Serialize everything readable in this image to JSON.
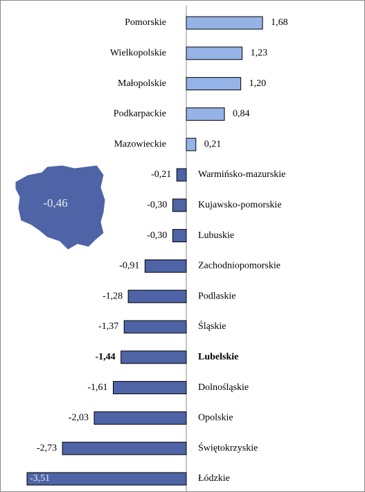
{
  "chart_data": {
    "type": "bar",
    "orientation": "horizontal",
    "categories": [
      "Pomorskie",
      "Wielkopolskie",
      "Małopolskie",
      "Podkarpackie",
      "Mazowieckie",
      "Warmińsko-mazurskie",
      "Kujawsko-pomorskie",
      "Lubuskie",
      "Zachodniopomorskie",
      "Podlaskie",
      "Śląskie",
      "Lubelskie",
      "Dolnośląskie",
      "Opolskie",
      "Świętokrzyskie",
      "Łódzkie"
    ],
    "values": [
      1.68,
      1.23,
      1.2,
      0.84,
      0.21,
      -0.21,
      -0.3,
      -0.3,
      -0.91,
      -1.28,
      -1.37,
      -1.44,
      -1.61,
      -2.03,
      -2.73,
      -3.51
    ],
    "value_labels": [
      "1,68",
      "1,23",
      "1,20",
      "0,84",
      "0,21",
      "-0,21",
      "-0,30",
      "-0,30",
      "-0,91",
      "-1,28",
      "-1,37",
      "-1,44",
      "-1,61",
      "-2,03",
      "-2,73",
      "-3,51"
    ],
    "positive_color": "#95b3e6",
    "negative_color": "#4e64a6",
    "highlight": 11,
    "annotation": "-0,46",
    "xlim": [
      -3.8,
      3.8
    ]
  }
}
